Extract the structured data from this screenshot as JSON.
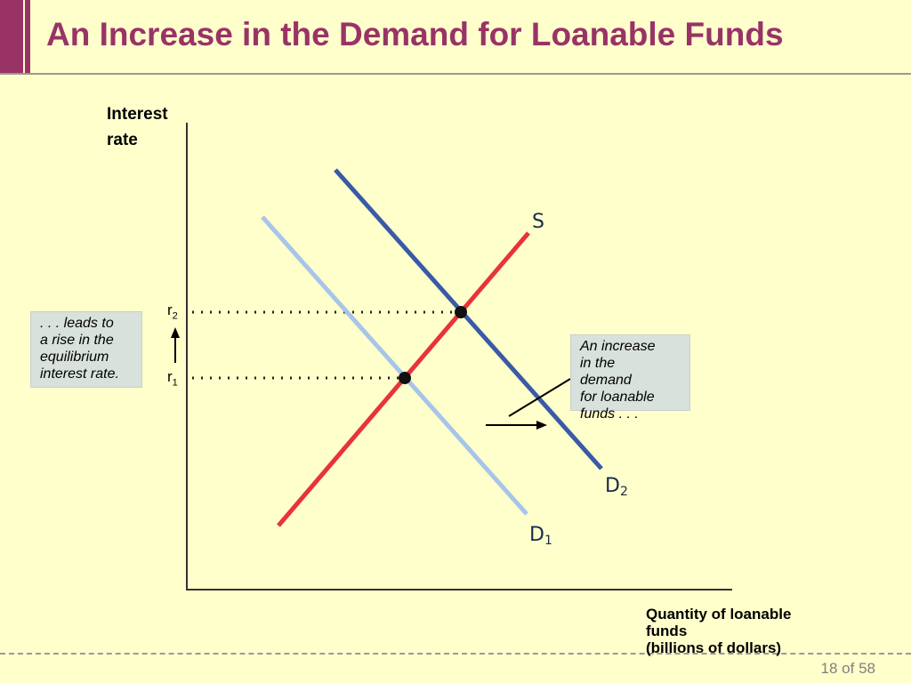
{
  "title": "An Increase in the Demand for Loanable Funds",
  "axes": {
    "y_label_line1": "Interest",
    "y_label_line2": "rate",
    "x_label_line1": "Quantity of loanable",
    "x_label_line2": "funds",
    "x_label_line3": "(billions of dollars)"
  },
  "curves": {
    "supply": "S",
    "demand1_letter": "D",
    "demand1_sub": "1",
    "demand2_letter": "D",
    "demand2_sub": "2"
  },
  "rates": {
    "r1_letter": "r",
    "r1_sub": "1",
    "r2_letter": "r",
    "r2_sub": "2"
  },
  "callouts": {
    "left": [
      ". . . leads to",
      "a rise in the",
      "equilibrium",
      "interest rate."
    ],
    "right": [
      "An increase",
      "in the",
      "demand",
      "for loanable",
      "funds . . ."
    ]
  },
  "colors": {
    "title": "#993366",
    "supply": "#e8323c",
    "demand1": "#a7c4ea",
    "demand2": "#3a5aa8",
    "background": "#ffffcc"
  },
  "page": "18 of 58"
}
